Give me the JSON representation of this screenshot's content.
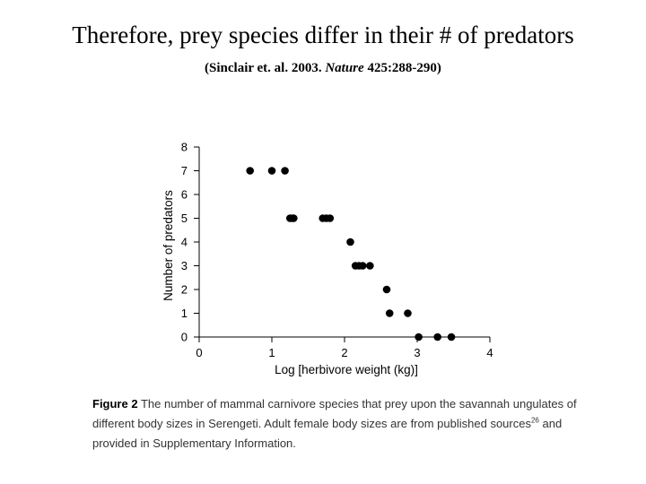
{
  "slide": {
    "title": "Therefore, prey species differ in their # of predators",
    "citation": {
      "open": "(Sinclair et. al. 2003. ",
      "journal": "Nature",
      "rest": " 425:288-290)"
    }
  },
  "caption": {
    "figure_label": "Figure 2",
    "text_before_sup": " The number of mammal carnivore species that prey upon the savannah ungulates of different body sizes in Serengeti. Adult female body sizes are from published sources",
    "superscript": "26",
    "text_after_sup": " and provided in Supplementary Information."
  },
  "chart_data": {
    "type": "scatter",
    "title": "",
    "xlabel": "Log [herbivore weight (kg)]",
    "ylabel": "Number of predators",
    "xlim": [
      0,
      4
    ],
    "ylim": [
      0,
      8
    ],
    "xticks": [
      0,
      1,
      2,
      3,
      4
    ],
    "yticks": [
      0,
      1,
      2,
      3,
      4,
      5,
      6,
      7,
      8
    ],
    "grid": false,
    "legend": "none",
    "marker_color": "#000000",
    "points": [
      {
        "x": 0.7,
        "y": 7
      },
      {
        "x": 1.0,
        "y": 7
      },
      {
        "x": 1.18,
        "y": 7
      },
      {
        "x": 1.25,
        "y": 5
      },
      {
        "x": 1.28,
        "y": 5
      },
      {
        "x": 1.3,
        "y": 5
      },
      {
        "x": 1.7,
        "y": 5
      },
      {
        "x": 1.75,
        "y": 5
      },
      {
        "x": 1.8,
        "y": 5
      },
      {
        "x": 2.08,
        "y": 4
      },
      {
        "x": 2.15,
        "y": 3
      },
      {
        "x": 2.2,
        "y": 3
      },
      {
        "x": 2.25,
        "y": 3
      },
      {
        "x": 2.35,
        "y": 3
      },
      {
        "x": 2.58,
        "y": 2
      },
      {
        "x": 2.62,
        "y": 1
      },
      {
        "x": 2.87,
        "y": 1
      },
      {
        "x": 3.02,
        "y": 0
      },
      {
        "x": 3.28,
        "y": 0
      },
      {
        "x": 3.47,
        "y": 0
      }
    ]
  }
}
